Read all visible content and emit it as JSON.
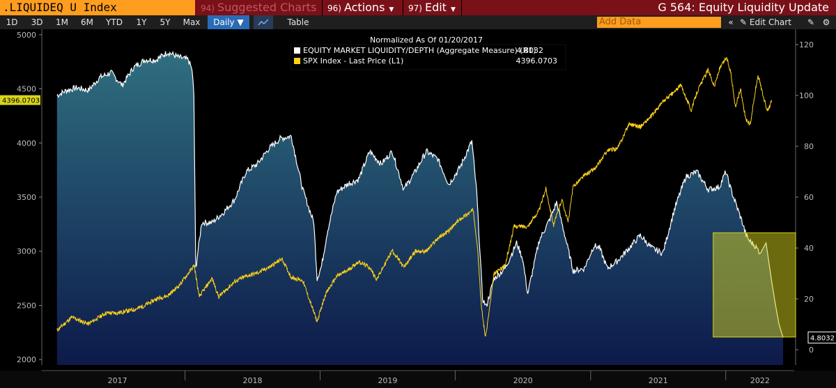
{
  "header": {
    "ticker": ".LIQUIDEQ U Index",
    "suggested": {
      "num": "94)",
      "label": "Suggested Charts"
    },
    "actions": {
      "num": "96)",
      "label": "Actions"
    },
    "edit": {
      "num": "97)",
      "label": "Edit"
    },
    "title": "G 564: Equity Liquidity Update"
  },
  "toolbar": {
    "ranges": [
      "1D",
      "3D",
      "1M",
      "6M",
      "YTD",
      "1Y",
      "5Y",
      "Max"
    ],
    "frequency": "Daily ▼",
    "table_label": "Table",
    "add_data_placeholder": "Add Data",
    "edit_chart_label": "Edit Chart",
    "icons": [
      "line-chart-icon",
      "collapse-icon",
      "pencil-icon",
      "settings-icon",
      "gear-icon"
    ]
  },
  "colors": {
    "background": "#000000",
    "liquidity_line": "#ffffff",
    "liquidity_fill_top": "#2f6f80",
    "liquidity_fill_bottom": "#0d1a4a",
    "spx_line": "#ffd21a",
    "highlight": "#d8d41c",
    "header_bar": "#7a1018",
    "ticker_bg": "#ff9d1e"
  },
  "chart_data": {
    "type": "line",
    "title": "Normalized As Of 01/20/2017",
    "x_ticks": [
      "2017",
      "2018",
      "2019",
      "2020",
      "2021",
      "2022"
    ],
    "left_axis": {
      "ticks": [
        2000,
        2500,
        3000,
        3500,
        4000,
        4500,
        5000
      ],
      "range": [
        1950,
        5050
      ]
    },
    "right_axis": {
      "ticks": [
        0,
        20,
        40,
        60,
        80,
        100,
        120
      ],
      "range": [
        -6,
        126
      ]
    },
    "legend_location": "top-center",
    "grid": false,
    "series": [
      {
        "name": "EQUITY MARKET LIQUIDITY/DEPTH (Aggregate Measure) (R1)",
        "axis": "right",
        "last_value": "4.8032",
        "style": "area",
        "points": [
          [
            "2017-01-20",
            100
          ],
          [
            "2017-02-15",
            102
          ],
          [
            "2017-03-15",
            103
          ],
          [
            "2017-04-15",
            102
          ],
          [
            "2017-05-15",
            107
          ],
          [
            "2017-06-15",
            109
          ],
          [
            "2017-07-15",
            104
          ],
          [
            "2017-08-15",
            111
          ],
          [
            "2017-09-15",
            114
          ],
          [
            "2017-10-15",
            114
          ],
          [
            "2017-11-15",
            117
          ],
          [
            "2017-12-15",
            115
          ],
          [
            "2018-01-10",
            114
          ],
          [
            "2018-01-20",
            110
          ],
          [
            "2018-01-25",
            100
          ],
          [
            "2018-01-30",
            32
          ],
          [
            "2018-02-15",
            50
          ],
          [
            "2018-03-15",
            50
          ],
          [
            "2018-04-15",
            54
          ],
          [
            "2018-05-15",
            59
          ],
          [
            "2018-06-15",
            70
          ],
          [
            "2018-07-15",
            73
          ],
          [
            "2018-08-15",
            79
          ],
          [
            "2018-09-15",
            83
          ],
          [
            "2018-10-15",
            84
          ],
          [
            "2018-11-15",
            63
          ],
          [
            "2018-12-15",
            50
          ],
          [
            "2018-12-24",
            28
          ],
          [
            "2019-01-05",
            33
          ],
          [
            "2019-01-20",
            46
          ],
          [
            "2019-02-15",
            62
          ],
          [
            "2019-03-15",
            65
          ],
          [
            "2019-04-15",
            67
          ],
          [
            "2019-05-15",
            78
          ],
          [
            "2019-06-15",
            73
          ],
          [
            "2019-07-15",
            78
          ],
          [
            "2019-08-15",
            63
          ],
          [
            "2019-09-15",
            70
          ],
          [
            "2019-10-15",
            78
          ],
          [
            "2019-11-15",
            75
          ],
          [
            "2019-12-15",
            65
          ],
          [
            "2020-01-15",
            72
          ],
          [
            "2020-02-15",
            82
          ],
          [
            "2020-02-28",
            62
          ],
          [
            "2020-03-15",
            20
          ],
          [
            "2020-03-25",
            17
          ],
          [
            "2020-04-15",
            28
          ],
          [
            "2020-05-15",
            32
          ],
          [
            "2020-06-15",
            42
          ],
          [
            "2020-07-01",
            36
          ],
          [
            "2020-07-15",
            22
          ],
          [
            "2020-08-15",
            43
          ],
          [
            "2020-09-15",
            52
          ],
          [
            "2020-10-01",
            58
          ],
          [
            "2020-10-15",
            50
          ],
          [
            "2020-11-15",
            31
          ],
          [
            "2020-12-15",
            32
          ],
          [
            "2021-01-10",
            41
          ],
          [
            "2021-01-25",
            40
          ],
          [
            "2021-02-15",
            32
          ],
          [
            "2021-03-15",
            35
          ],
          [
            "2021-04-15",
            40
          ],
          [
            "2021-05-15",
            45
          ],
          [
            "2021-06-15",
            40
          ],
          [
            "2021-07-15",
            38
          ],
          [
            "2021-08-15",
            55
          ],
          [
            "2021-09-15",
            68
          ],
          [
            "2021-10-15",
            70
          ],
          [
            "2021-11-15",
            63
          ],
          [
            "2021-12-15",
            64
          ],
          [
            "2022-01-01",
            70
          ],
          [
            "2022-01-15",
            63
          ],
          [
            "2022-02-15",
            50
          ],
          [
            "2022-02-25",
            45
          ],
          [
            "2022-03-05",
            43
          ],
          [
            "2022-03-20",
            41
          ],
          [
            "2022-04-05",
            38
          ],
          [
            "2022-04-20",
            42
          ],
          [
            "2022-05-05",
            27
          ],
          [
            "2022-05-15",
            18
          ],
          [
            "2022-05-25",
            10
          ],
          [
            "2022-06-05",
            4.8
          ]
        ]
      },
      {
        "name": "SPX Index - Last Price (L1)",
        "axis": "left",
        "last_value": "4396.0703",
        "style": "line",
        "points": [
          [
            "2017-01-20",
            2270
          ],
          [
            "2017-03-01",
            2390
          ],
          [
            "2017-04-15",
            2330
          ],
          [
            "2017-06-01",
            2430
          ],
          [
            "2017-07-01",
            2430
          ],
          [
            "2017-08-15",
            2460
          ],
          [
            "2017-09-15",
            2500
          ],
          [
            "2017-10-15",
            2560
          ],
          [
            "2017-11-15",
            2590
          ],
          [
            "2017-12-15",
            2680
          ],
          [
            "2018-01-26",
            2870
          ],
          [
            "2018-02-08",
            2580
          ],
          [
            "2018-03-15",
            2750
          ],
          [
            "2018-04-02",
            2580
          ],
          [
            "2018-05-15",
            2720
          ],
          [
            "2018-06-15",
            2770
          ],
          [
            "2018-07-15",
            2800
          ],
          [
            "2018-08-15",
            2850
          ],
          [
            "2018-09-20",
            2930
          ],
          [
            "2018-10-15",
            2760
          ],
          [
            "2018-11-15",
            2730
          ],
          [
            "2018-12-24",
            2350
          ],
          [
            "2019-01-15",
            2600
          ],
          [
            "2019-02-15",
            2770
          ],
          [
            "2019-03-15",
            2820
          ],
          [
            "2019-04-15",
            2905
          ],
          [
            "2019-05-15",
            2850
          ],
          [
            "2019-06-03",
            2740
          ],
          [
            "2019-07-15",
            3010
          ],
          [
            "2019-08-15",
            2850
          ],
          [
            "2019-09-15",
            3000
          ],
          [
            "2019-10-15",
            3000
          ],
          [
            "2019-11-15",
            3120
          ],
          [
            "2019-12-15",
            3190
          ],
          [
            "2020-01-15",
            3300
          ],
          [
            "2020-02-19",
            3380
          ],
          [
            "2020-03-01",
            3050
          ],
          [
            "2020-03-12",
            2480
          ],
          [
            "2020-03-23",
            2200
          ],
          [
            "2020-04-15",
            2790
          ],
          [
            "2020-05-15",
            2870
          ],
          [
            "2020-06-08",
            3230
          ],
          [
            "2020-07-15",
            3230
          ],
          [
            "2020-08-15",
            3380
          ],
          [
            "2020-09-02",
            3580
          ],
          [
            "2020-09-23",
            3240
          ],
          [
            "2020-10-15",
            3480
          ],
          [
            "2020-11-01",
            3270
          ],
          [
            "2020-11-15",
            3600
          ],
          [
            "2020-12-15",
            3700
          ],
          [
            "2021-01-15",
            3770
          ],
          [
            "2021-02-15",
            3930
          ],
          [
            "2021-03-15",
            3950
          ],
          [
            "2021-04-15",
            4180
          ],
          [
            "2021-05-15",
            4150
          ],
          [
            "2021-06-15",
            4250
          ],
          [
            "2021-07-15",
            4380
          ],
          [
            "2021-08-15",
            4470
          ],
          [
            "2021-09-02",
            4535
          ],
          [
            "2021-09-30",
            4300
          ],
          [
            "2021-10-15",
            4470
          ],
          [
            "2021-11-15",
            4680
          ],
          [
            "2021-12-01",
            4520
          ],
          [
            "2021-12-15",
            4680
          ],
          [
            "2022-01-03",
            4790
          ],
          [
            "2022-01-15",
            4650
          ],
          [
            "2022-01-27",
            4330
          ],
          [
            "2022-02-10",
            4500
          ],
          [
            "2022-02-24",
            4220
          ],
          [
            "2022-03-08",
            4170
          ],
          [
            "2022-03-29",
            4630
          ],
          [
            "2022-04-15",
            4400
          ],
          [
            "2022-04-25",
            4290
          ],
          [
            "2022-05-05",
            4396
          ]
        ]
      }
    ],
    "highlight_box": {
      "x_start": "2022-01-01",
      "x_end": "2022-06-05",
      "y_start_right": 5,
      "y_end_right": 46
    }
  }
}
